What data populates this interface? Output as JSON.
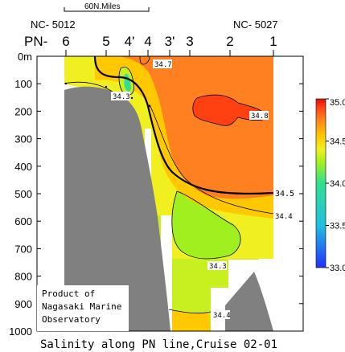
{
  "chart_data": {
    "type": "contour",
    "title": "Salinity along PN line,Cruise 02-01",
    "scale_bar_label": "60N.Miles",
    "end_station_labels": {
      "left": "NC- 5012",
      "right": "NC- 5027"
    },
    "line_label": "PN-",
    "stations": [
      "6",
      "5",
      "4'",
      "4",
      "3'",
      "3",
      "2",
      "1"
    ],
    "y_axis": {
      "label": "",
      "unit": "m",
      "range": [
        0,
        1000
      ],
      "inverted": true,
      "ticks": [
        "0m",
        "100",
        "200",
        "300",
        "400",
        "500",
        "600",
        "700",
        "800",
        "900",
        "1000"
      ]
    },
    "grid": false,
    "colorbar": {
      "min": 33.0,
      "max": 35.0,
      "ticks": [
        "35.0",
        "34.5",
        "34.0",
        "33.5",
        "33.0"
      ]
    },
    "contour_labels": [
      "34.7",
      "34.8",
      "34.3",
      "34.5",
      "34.4",
      "34.3",
      "34.4"
    ],
    "credit": [
      "Product of",
      "Nagasaki Marine",
      "Observatory"
    ],
    "colors": {
      "s33": "#2030ff",
      "s335": "#20c0e0",
      "s34": "#30e090",
      "s342": "#a0f020",
      "s343": "#c8f020",
      "s344": "#f0f020",
      "s345": "#ffc800",
      "s347": "#ff8020",
      "s348": "#ff4010",
      "s35": "#e01010",
      "seafloor": "#808080"
    }
  }
}
